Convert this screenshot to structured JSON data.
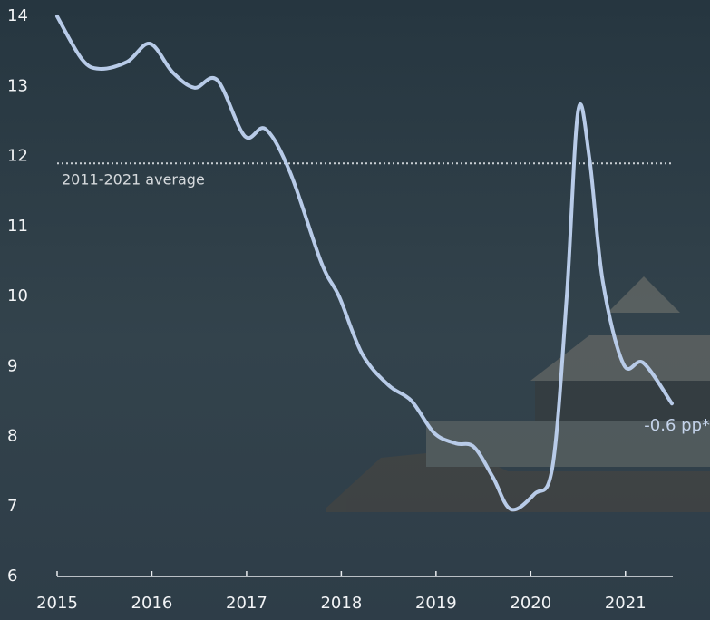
{
  "chart_data": {
    "type": "line",
    "x": [
      2015.0,
      2015.26,
      2015.45,
      2015.74,
      2015.98,
      2016.22,
      2016.45,
      2016.69,
      2016.98,
      2017.2,
      2017.46,
      2017.79,
      2017.98,
      2018.22,
      2018.5,
      2018.74,
      2018.98,
      2019.21,
      2019.4,
      2019.6,
      2019.79,
      2020.04,
      2020.23,
      2020.38,
      2020.5,
      2020.62,
      2020.76,
      2020.98,
      2021.19,
      2021.49
    ],
    "series": [
      {
        "color": "#b8cbe8",
        "values": [
          14.0,
          13.39,
          13.25,
          13.35,
          13.61,
          13.2,
          12.98,
          13.09,
          12.29,
          12.39,
          11.77,
          10.48,
          9.99,
          9.18,
          8.73,
          8.51,
          8.05,
          7.9,
          7.85,
          7.42,
          6.96,
          7.18,
          7.57,
          10.0,
          12.65,
          11.97,
          10.22,
          9.03,
          9.05,
          8.47
        ]
      }
    ],
    "xlim": [
      2015,
      2021.5
    ],
    "xticks": [
      2015,
      2016,
      2017,
      2018,
      2019,
      2020,
      2021
    ],
    "ylim": [
      6,
      14
    ],
    "yticks": [
      6,
      7,
      8,
      9,
      10,
      11,
      12,
      13,
      14
    ],
    "reference_line": {
      "value": 11.9,
      "label": "2011-2021 average"
    },
    "annotation": "-0.6 pp*"
  }
}
